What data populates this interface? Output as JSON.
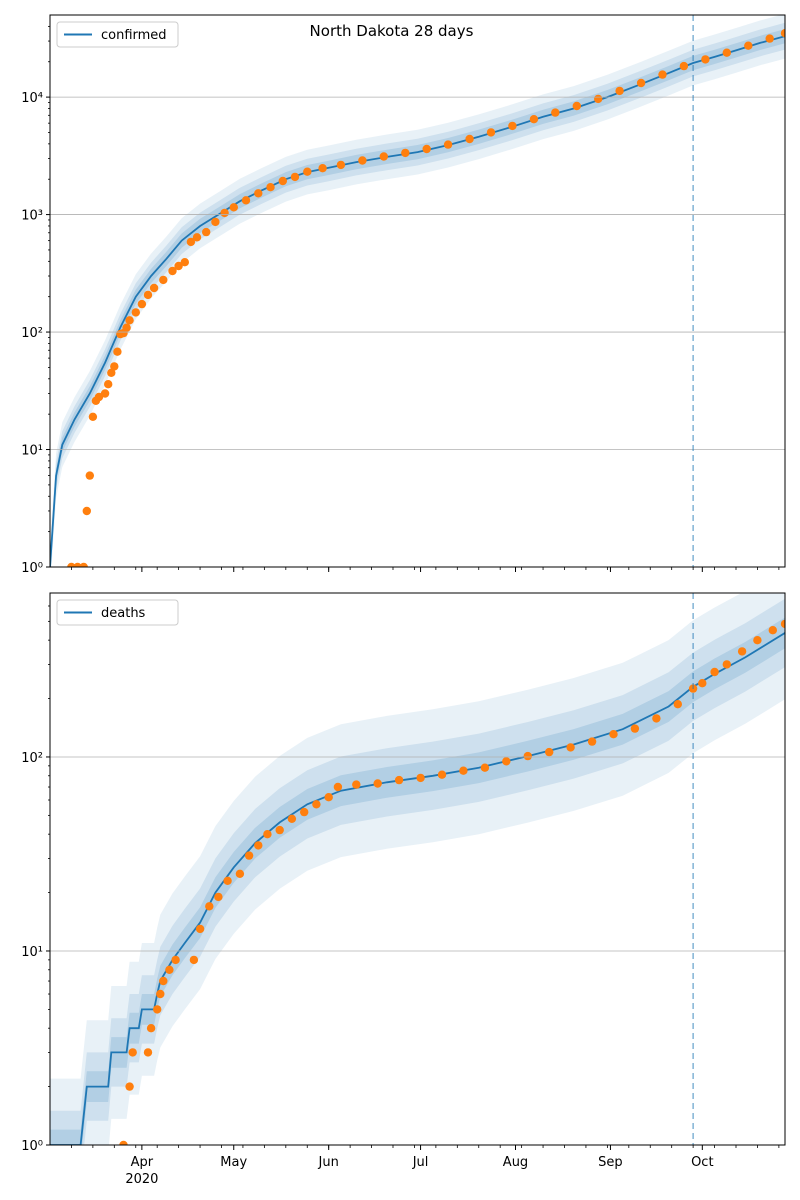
{
  "chart_data": [
    {
      "type": "line",
      "title": "North Dakota 28 days",
      "y_scale": "log",
      "ylim": [
        1,
        50000
      ],
      "xlim": [
        "2020-03-02",
        "2020-10-28"
      ],
      "grid": "y-major",
      "legend_position": "top-left",
      "yticks": [
        {
          "value": 1,
          "label": "10⁰"
        },
        {
          "value": 10,
          "label": "10¹"
        },
        {
          "value": 100,
          "label": "10²"
        },
        {
          "value": 1000,
          "label": "10³"
        },
        {
          "value": 10000,
          "label": "10⁴"
        }
      ],
      "vline_date": "2020-09-28",
      "series": [
        {
          "name": "confirmed",
          "color": "#1f77b4",
          "points": [
            [
              "2020-03-02",
              1
            ],
            [
              "2020-03-04",
              6
            ],
            [
              "2020-03-06",
              11
            ],
            [
              "2020-03-10",
              18
            ],
            [
              "2020-03-15",
              30
            ],
            [
              "2020-03-20",
              55
            ],
            [
              "2020-03-25",
              110
            ],
            [
              "2020-03-30",
              200
            ],
            [
              "2020-04-04",
              300
            ],
            [
              "2020-04-09",
              420
            ],
            [
              "2020-04-14",
              600
            ],
            [
              "2020-04-20",
              800
            ],
            [
              "2020-04-26",
              1000
            ],
            [
              "2020-05-03",
              1300
            ],
            [
              "2020-05-10",
              1600
            ],
            [
              "2020-05-18",
              2000
            ],
            [
              "2020-05-25",
              2300
            ],
            [
              "2020-06-01",
              2500
            ],
            [
              "2020-06-10",
              2800
            ],
            [
              "2020-06-20",
              3100
            ],
            [
              "2020-06-30",
              3400
            ],
            [
              "2020-07-10",
              3900
            ],
            [
              "2020-07-20",
              4600
            ],
            [
              "2020-07-31",
              5600
            ],
            [
              "2020-08-10",
              6800
            ],
            [
              "2020-08-20",
              8000
            ],
            [
              "2020-08-31",
              10000
            ],
            [
              "2020-09-10",
              12600
            ],
            [
              "2020-09-20",
              16000
            ],
            [
              "2020-09-28",
              19500
            ],
            [
              "2020-10-05",
              22000
            ],
            [
              "2020-10-12",
              25000
            ],
            [
              "2020-10-20",
              29000
            ],
            [
              "2020-10-28",
              33000
            ]
          ]
        },
        {
          "name": "",
          "color": "#ff7f0e",
          "points": [
            [
              "2020-03-09",
              1
            ],
            [
              "2020-03-11",
              1
            ],
            [
              "2020-03-13",
              1
            ],
            [
              "2020-03-14",
              3
            ],
            [
              "2020-03-15",
              6
            ],
            [
              "2020-03-16",
              19
            ],
            [
              "2020-03-17",
              26
            ],
            [
              "2020-03-18",
              28
            ],
            [
              "2020-03-20",
              30
            ],
            [
              "2020-03-21",
              36
            ],
            [
              "2020-03-22",
              45
            ],
            [
              "2020-03-23",
              51
            ],
            [
              "2020-03-24",
              68
            ],
            [
              "2020-03-25",
              96
            ],
            [
              "2020-03-26",
              98
            ],
            [
              "2020-03-27",
              109
            ],
            [
              "2020-03-28",
              126
            ],
            [
              "2020-03-30",
              147
            ],
            [
              "2020-04-01",
              173
            ],
            [
              "2020-04-03",
              207
            ],
            [
              "2020-04-05",
              237
            ],
            [
              "2020-04-08",
              278
            ],
            [
              "2020-04-11",
              331
            ],
            [
              "2020-04-13",
              365
            ],
            [
              "2020-04-15",
              393
            ],
            [
              "2020-04-17",
              585
            ],
            [
              "2020-04-19",
              641
            ],
            [
              "2020-04-22",
              709
            ],
            [
              "2020-04-25",
              867
            ],
            [
              "2020-04-28",
              1033
            ],
            [
              "2020-05-01",
              1153
            ],
            [
              "2020-05-05",
              1323
            ],
            [
              "2020-05-09",
              1518
            ],
            [
              "2020-05-13",
              1712
            ],
            [
              "2020-05-17",
              1931
            ],
            [
              "2020-05-21",
              2095
            ],
            [
              "2020-05-25",
              2317
            ],
            [
              "2020-05-30",
              2481
            ],
            [
              "2020-06-05",
              2646
            ],
            [
              "2020-06-12",
              2889
            ],
            [
              "2020-06-19",
              3124
            ],
            [
              "2020-06-26",
              3352
            ],
            [
              "2020-07-03",
              3615
            ],
            [
              "2020-07-10",
              3946
            ],
            [
              "2020-07-17",
              4401
            ],
            [
              "2020-07-24",
              5003
            ],
            [
              "2020-07-31",
              5684
            ],
            [
              "2020-08-07",
              6491
            ],
            [
              "2020-08-14",
              7387
            ],
            [
              "2020-08-21",
              8408
            ],
            [
              "2020-08-28",
              9647
            ],
            [
              "2020-09-04",
              11304
            ],
            [
              "2020-09-11",
              13191
            ],
            [
              "2020-09-18",
              15542
            ],
            [
              "2020-09-25",
              18355
            ],
            [
              "2020-10-02",
              20934
            ],
            [
              "2020-10-09",
              23858
            ],
            [
              "2020-10-16",
              27373
            ],
            [
              "2020-10-23",
              31492
            ],
            [
              "2020-10-28",
              35000
            ]
          ]
        }
      ]
    },
    {
      "type": "line",
      "y_scale": "log",
      "ylim": [
        1,
        700
      ],
      "xlim": [
        "2020-03-02",
        "2020-10-28"
      ],
      "grid": "y-major",
      "legend_position": "top-left",
      "yticks": [
        {
          "value": 1,
          "label": "10⁰"
        },
        {
          "value": 10,
          "label": "10¹"
        },
        {
          "value": 100,
          "label": "10²"
        }
      ],
      "vline_date": "2020-09-28",
      "series": [
        {
          "name": "deaths",
          "color": "#1f77b4",
          "points": [
            [
              "2020-03-02",
              1
            ],
            [
              "2020-03-12",
              1
            ],
            [
              "2020-03-14",
              2
            ],
            [
              "2020-03-21",
              2
            ],
            [
              "2020-03-22",
              3
            ],
            [
              "2020-03-27",
              3
            ],
            [
              "2020-03-28",
              4
            ],
            [
              "2020-03-31",
              4
            ],
            [
              "2020-04-01",
              5
            ],
            [
              "2020-04-05",
              5
            ],
            [
              "2020-04-06",
              6
            ],
            [
              "2020-04-07",
              7
            ],
            [
              "2020-04-11",
              9
            ],
            [
              "2020-04-15",
              11
            ],
            [
              "2020-04-20",
              14
            ],
            [
              "2020-04-25",
              20
            ],
            [
              "2020-05-01",
              27
            ],
            [
              "2020-05-08",
              36
            ],
            [
              "2020-05-16",
              46
            ],
            [
              "2020-05-25",
              57
            ],
            [
              "2020-06-05",
              67
            ],
            [
              "2020-06-20",
              74
            ],
            [
              "2020-07-05",
              80
            ],
            [
              "2020-07-20",
              88
            ],
            [
              "2020-08-05",
              101
            ],
            [
              "2020-08-20",
              116
            ],
            [
              "2020-09-05",
              139
            ],
            [
              "2020-09-20",
              182
            ],
            [
              "2020-09-28",
              230
            ],
            [
              "2020-10-05",
              268
            ],
            [
              "2020-10-15",
              326
            ],
            [
              "2020-10-28",
              436
            ]
          ]
        },
        {
          "name": "",
          "color": "#ff7f0e",
          "points": [
            [
              "2020-03-26",
              1
            ],
            [
              "2020-03-28",
              2
            ],
            [
              "2020-03-29",
              3
            ],
            [
              "2020-04-03",
              3
            ],
            [
              "2020-04-04",
              4
            ],
            [
              "2020-04-06",
              5
            ],
            [
              "2020-04-07",
              6
            ],
            [
              "2020-04-08",
              7
            ],
            [
              "2020-04-10",
              8
            ],
            [
              "2020-04-12",
              9
            ],
            [
              "2020-04-18",
              9
            ],
            [
              "2020-04-20",
              13
            ],
            [
              "2020-04-23",
              17
            ],
            [
              "2020-04-26",
              19
            ],
            [
              "2020-04-29",
              23
            ],
            [
              "2020-05-03",
              25
            ],
            [
              "2020-05-06",
              31
            ],
            [
              "2020-05-09",
              35
            ],
            [
              "2020-05-12",
              40
            ],
            [
              "2020-05-16",
              42
            ],
            [
              "2020-05-20",
              48
            ],
            [
              "2020-05-24",
              52
            ],
            [
              "2020-05-28",
              57
            ],
            [
              "2020-06-01",
              62
            ],
            [
              "2020-06-04",
              70
            ],
            [
              "2020-06-10",
              72
            ],
            [
              "2020-06-17",
              73
            ],
            [
              "2020-06-24",
              76
            ],
            [
              "2020-07-01",
              78
            ],
            [
              "2020-07-08",
              81
            ],
            [
              "2020-07-15",
              85
            ],
            [
              "2020-07-22",
              88
            ],
            [
              "2020-07-29",
              95
            ],
            [
              "2020-08-05",
              101
            ],
            [
              "2020-08-12",
              106
            ],
            [
              "2020-08-19",
              112
            ],
            [
              "2020-08-26",
              120
            ],
            [
              "2020-09-02",
              131
            ],
            [
              "2020-09-09",
              140
            ],
            [
              "2020-09-16",
              158
            ],
            [
              "2020-09-23",
              187
            ],
            [
              "2020-09-28",
              225
            ],
            [
              "2020-10-01",
              240
            ],
            [
              "2020-10-05",
              274
            ],
            [
              "2020-10-09",
              300
            ],
            [
              "2020-10-14",
              350
            ],
            [
              "2020-10-19",
              400
            ],
            [
              "2020-10-24",
              450
            ],
            [
              "2020-10-28",
              485
            ]
          ]
        }
      ]
    }
  ],
  "x_axis": {
    "ticks": [
      {
        "date": "2020-04-01",
        "label": "Apr",
        "sublabel": "2020"
      },
      {
        "date": "2020-05-01",
        "label": "May",
        "sublabel": ""
      },
      {
        "date": "2020-06-01",
        "label": "Jun",
        "sublabel": ""
      },
      {
        "date": "2020-07-01",
        "label": "Jul",
        "sublabel": ""
      },
      {
        "date": "2020-08-01",
        "label": "Aug",
        "sublabel": ""
      },
      {
        "date": "2020-09-01",
        "label": "Sep",
        "sublabel": ""
      },
      {
        "date": "2020-10-01",
        "label": "Oct",
        "sublabel": ""
      }
    ]
  },
  "colors": {
    "model": "#1f77b4",
    "observed": "#ff7f0e",
    "band": "#1f77b4",
    "grid": "#b0b0b0",
    "vline": "#1f77b4"
  }
}
